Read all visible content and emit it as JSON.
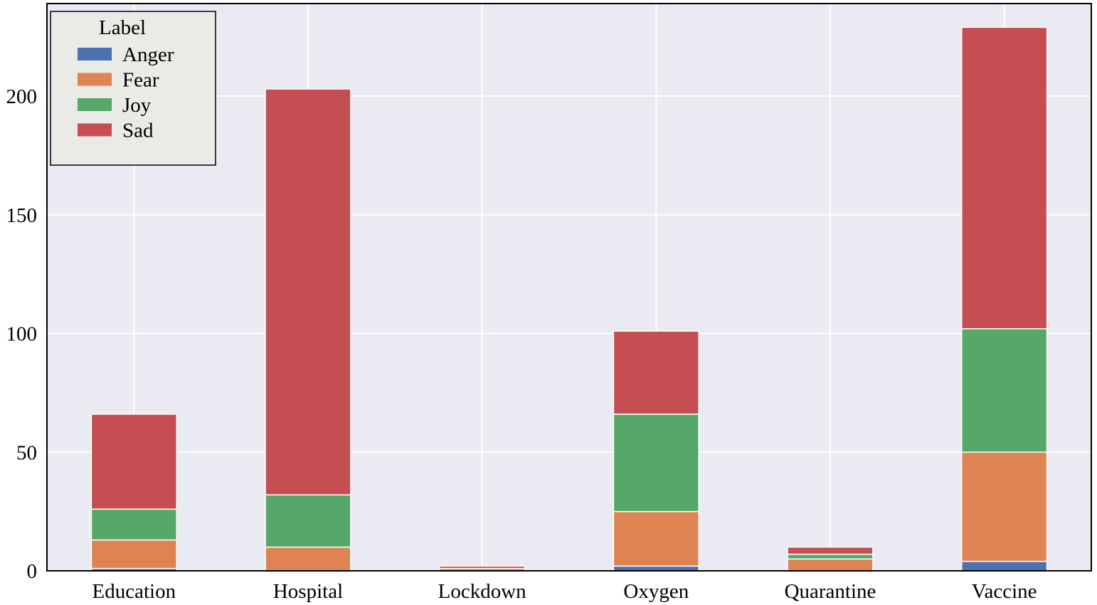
{
  "chart_data": {
    "type": "bar",
    "stacked": true,
    "categories": [
      "Education",
      "Hospital",
      "Lockdown",
      "Oxygen",
      "Quarantine",
      "Vaccine"
    ],
    "series": [
      {
        "name": "Anger",
        "color": "#4c72b0",
        "values": [
          1,
          0,
          0,
          2,
          0,
          4
        ]
      },
      {
        "name": "Fear",
        "color": "#dd8452",
        "values": [
          12,
          10,
          1,
          23,
          5,
          46
        ]
      },
      {
        "name": "Joy",
        "color": "#55a868",
        "values": [
          13,
          22,
          0,
          41,
          2,
          52
        ]
      },
      {
        "name": "Sad",
        "color": "#c44e52",
        "values": [
          40,
          171,
          1,
          35,
          3,
          127
        ]
      }
    ],
    "ylim": [
      0,
      239
    ],
    "yticks": [
      0,
      50,
      100,
      150,
      200
    ],
    "grid": true,
    "legend": {
      "title": "Label",
      "placement": "top-left"
    },
    "colors": {
      "background": "#eaeaf2",
      "grid": "#ffffff",
      "axis": "#000000",
      "legend_bg": "#eaeae6"
    }
  }
}
